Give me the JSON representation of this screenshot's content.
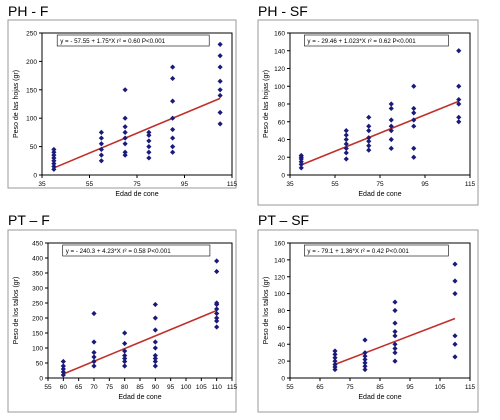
{
  "colors": {
    "points": "#1a1a7a",
    "fit_line": "#c0302a",
    "frame": "#9a9a9a",
    "plot_border": "#000000"
  },
  "chart_data": [
    {
      "type": "scatter",
      "title": "PH - F",
      "equation": "y = - 57.55 + 1.75*X   r² = 0.60   P<0.001",
      "xlabel": "Edad de cone",
      "ylabel": "Peso de las hojas (gr)",
      "xlim": [
        35,
        115
      ],
      "ylim": [
        0,
        250
      ],
      "xticks": [
        35,
        55,
        75,
        95,
        115
      ],
      "yticks": [
        0,
        50,
        100,
        150,
        200,
        250
      ],
      "grid": false,
      "fit": {
        "intercept": -57.55,
        "slope": 1.75
      },
      "points": [
        [
          40,
          10
        ],
        [
          40,
          15
        ],
        [
          40,
          20
        ],
        [
          40,
          25
        ],
        [
          40,
          30
        ],
        [
          40,
          35
        ],
        [
          40,
          40
        ],
        [
          40,
          45
        ],
        [
          60,
          25
        ],
        [
          60,
          35
        ],
        [
          60,
          45
        ],
        [
          60,
          55
        ],
        [
          60,
          65
        ],
        [
          60,
          75
        ],
        [
          70,
          35
        ],
        [
          70,
          40
        ],
        [
          70,
          55
        ],
        [
          70,
          65
        ],
        [
          70,
          75
        ],
        [
          70,
          85
        ],
        [
          70,
          100
        ],
        [
          70,
          150
        ],
        [
          80,
          30
        ],
        [
          80,
          40
        ],
        [
          80,
          50
        ],
        [
          80,
          60
        ],
        [
          80,
          70
        ],
        [
          80,
          75
        ],
        [
          90,
          40
        ],
        [
          90,
          50
        ],
        [
          90,
          65
        ],
        [
          90,
          80
        ],
        [
          90,
          100
        ],
        [
          90,
          130
        ],
        [
          90,
          170
        ],
        [
          90,
          190
        ],
        [
          110,
          90
        ],
        [
          110,
          110
        ],
        [
          110,
          140
        ],
        [
          110,
          150
        ],
        [
          110,
          165
        ],
        [
          110,
          190
        ],
        [
          110,
          210
        ],
        [
          110,
          230
        ]
      ]
    },
    {
      "type": "scatter",
      "title": "PH - SF",
      "equation": "y = - 29.46 + 1.023*X   r² = 0.62   P<0.001",
      "xlabel": "Edad de cone",
      "ylabel": "Peso de las hojas (gr)",
      "xlim": [
        35,
        115
      ],
      "ylim": [
        0,
        160
      ],
      "xticks": [
        35,
        55,
        75,
        95,
        115
      ],
      "yticks": [
        0,
        20,
        40,
        60,
        80,
        100,
        120,
        140,
        160
      ],
      "grid": false,
      "fit": {
        "intercept": -29.46,
        "slope": 1.023
      },
      "points": [
        [
          40,
          8
        ],
        [
          40,
          12
        ],
        [
          40,
          15
        ],
        [
          40,
          18
        ],
        [
          40,
          20
        ],
        [
          40,
          22
        ],
        [
          60,
          18
        ],
        [
          60,
          25
        ],
        [
          60,
          30
        ],
        [
          60,
          35
        ],
        [
          60,
          40
        ],
        [
          60,
          45
        ],
        [
          60,
          50
        ],
        [
          70,
          28
        ],
        [
          70,
          33
        ],
        [
          70,
          38
        ],
        [
          70,
          42
        ],
        [
          70,
          50
        ],
        [
          70,
          55
        ],
        [
          70,
          65
        ],
        [
          80,
          30
        ],
        [
          80,
          40
        ],
        [
          80,
          50
        ],
        [
          80,
          55
        ],
        [
          80,
          62
        ],
        [
          80,
          75
        ],
        [
          80,
          80
        ],
        [
          90,
          20
        ],
        [
          90,
          30
        ],
        [
          90,
          55
        ],
        [
          90,
          62
        ],
        [
          90,
          70
        ],
        [
          90,
          75
        ],
        [
          90,
          100
        ],
        [
          110,
          60
        ],
        [
          110,
          65
        ],
        [
          110,
          80
        ],
        [
          110,
          85
        ],
        [
          110,
          100
        ],
        [
          110,
          140
        ]
      ]
    },
    {
      "type": "scatter",
      "title": "PT – F",
      "equation": "y = - 240.3 + 4.23*X   r² = 0.58   P<0.001",
      "xlabel": "Edad de cone",
      "ylabel": "Peso de los tallos (gr)",
      "xlim": [
        55,
        115
      ],
      "ylim": [
        0,
        450
      ],
      "xticks": [
        55,
        60,
        65,
        70,
        75,
        80,
        85,
        90,
        95,
        100,
        105,
        110,
        115
      ],
      "yticks": [
        0,
        50,
        100,
        150,
        200,
        250,
        300,
        350,
        400,
        450
      ],
      "grid": false,
      "fit": {
        "intercept": -240.3,
        "slope": 4.23
      },
      "points": [
        [
          60,
          10
        ],
        [
          60,
          20
        ],
        [
          60,
          30
        ],
        [
          60,
          40
        ],
        [
          60,
          55
        ],
        [
          70,
          40
        ],
        [
          70,
          55
        ],
        [
          70,
          70
        ],
        [
          70,
          85
        ],
        [
          70,
          120
        ],
        [
          70,
          215
        ],
        [
          80,
          40
        ],
        [
          80,
          55
        ],
        [
          80,
          65
        ],
        [
          80,
          75
        ],
        [
          80,
          90
        ],
        [
          80,
          115
        ],
        [
          80,
          150
        ],
        [
          90,
          40
        ],
        [
          90,
          55
        ],
        [
          90,
          65
        ],
        [
          90,
          75
        ],
        [
          90,
          100
        ],
        [
          90,
          120
        ],
        [
          90,
          160
        ],
        [
          90,
          200
        ],
        [
          90,
          245
        ],
        [
          110,
          170
        ],
        [
          110,
          190
        ],
        [
          110,
          200
        ],
        [
          110,
          215
        ],
        [
          110,
          230
        ],
        [
          110,
          245
        ],
        [
          110,
          250
        ],
        [
          110,
          355
        ],
        [
          110,
          390
        ]
      ]
    },
    {
      "type": "scatter",
      "title": "PT – SF",
      "equation": "y = - 79.1 + 1.36*X   r² = 0.42   P<0.001",
      "xlabel": "Edad de cone",
      "ylabel": "Peso de los tallos (gr)",
      "xlim": [
        55,
        115
      ],
      "ylim": [
        0,
        160
      ],
      "xticks": [
        55,
        65,
        75,
        85,
        95,
        105,
        115
      ],
      "yticks": [
        0,
        20,
        40,
        60,
        80,
        100,
        120,
        140,
        160
      ],
      "grid": false,
      "fit": {
        "intercept": -79.1,
        "slope": 1.36
      },
      "points": [
        [
          70,
          10
        ],
        [
          70,
          13
        ],
        [
          70,
          16
        ],
        [
          70,
          20
        ],
        [
          70,
          24
        ],
        [
          70,
          28
        ],
        [
          70,
          32
        ],
        [
          80,
          10
        ],
        [
          80,
          14
        ],
        [
          80,
          18
        ],
        [
          80,
          22
        ],
        [
          80,
          26
        ],
        [
          80,
          30
        ],
        [
          80,
          45
        ],
        [
          90,
          20
        ],
        [
          90,
          30
        ],
        [
          90,
          35
        ],
        [
          90,
          40
        ],
        [
          90,
          50
        ],
        [
          90,
          55
        ],
        [
          90,
          65
        ],
        [
          90,
          80
        ],
        [
          90,
          90
        ],
        [
          110,
          25
        ],
        [
          110,
          40
        ],
        [
          110,
          50
        ],
        [
          110,
          100
        ],
        [
          110,
          115
        ],
        [
          110,
          135
        ]
      ]
    }
  ]
}
